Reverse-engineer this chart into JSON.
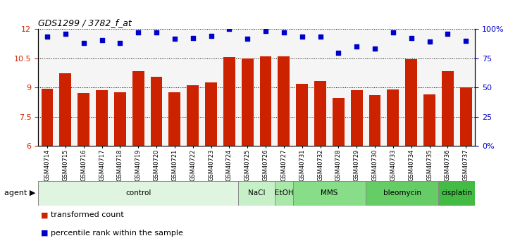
{
  "title": "GDS1299 / 3782_f_at",
  "samples": [
    "GSM40714",
    "GSM40715",
    "GSM40716",
    "GSM40717",
    "GSM40718",
    "GSM40719",
    "GSM40720",
    "GSM40721",
    "GSM40722",
    "GSM40723",
    "GSM40724",
    "GSM40725",
    "GSM40726",
    "GSM40727",
    "GSM40731",
    "GSM40732",
    "GSM40728",
    "GSM40729",
    "GSM40730",
    "GSM40733",
    "GSM40734",
    "GSM40735",
    "GSM40736",
    "GSM40737"
  ],
  "bar_values": [
    8.95,
    9.75,
    8.7,
    8.85,
    8.75,
    9.85,
    9.55,
    8.75,
    9.1,
    9.25,
    10.55,
    10.5,
    10.6,
    10.6,
    9.2,
    9.35,
    8.45,
    8.85,
    8.6,
    8.9,
    10.45,
    8.65,
    9.85,
    9.0
  ],
  "percentile_values": [
    11.6,
    11.75,
    11.3,
    11.45,
    11.3,
    11.85,
    11.85,
    11.5,
    11.55,
    11.65,
    12.0,
    11.5,
    11.9,
    11.85,
    11.6,
    11.6,
    10.8,
    11.1,
    11.0,
    11.85,
    11.55,
    11.35,
    11.75,
    11.4
  ],
  "bar_color": "#cc2200",
  "dot_color": "#0000cc",
  "ylim_left": [
    6,
    12
  ],
  "yticks_left": [
    6,
    7.5,
    9,
    10.5,
    12
  ],
  "ytick_labels_left": [
    "6",
    "7.5",
    "9",
    "10.5",
    "12"
  ],
  "ytick_labels_right": [
    "0%",
    "25",
    "50",
    "75",
    "100%"
  ],
  "yticks_right": [
    0,
    25,
    50,
    75,
    100
  ],
  "agent_groups": [
    {
      "label": "control",
      "start": 0,
      "end": 10,
      "color": "#e0f5e0"
    },
    {
      "label": "NaCl",
      "start": 11,
      "end": 12,
      "color": "#c8f0c8"
    },
    {
      "label": "EtOH",
      "start": 13,
      "end": 13,
      "color": "#aae8aa"
    },
    {
      "label": "MMS",
      "start": 14,
      "end": 17,
      "color": "#88dd88"
    },
    {
      "label": "bleomycin",
      "start": 18,
      "end": 21,
      "color": "#66cc66"
    },
    {
      "label": "cisplatin",
      "start": 22,
      "end": 23,
      "color": "#44bb44"
    }
  ],
  "legend_items": [
    {
      "label": "transformed count",
      "color": "#cc2200"
    },
    {
      "label": "percentile rank within the sample",
      "color": "#0000cc"
    }
  ],
  "bg_color": "#f5f5f5"
}
